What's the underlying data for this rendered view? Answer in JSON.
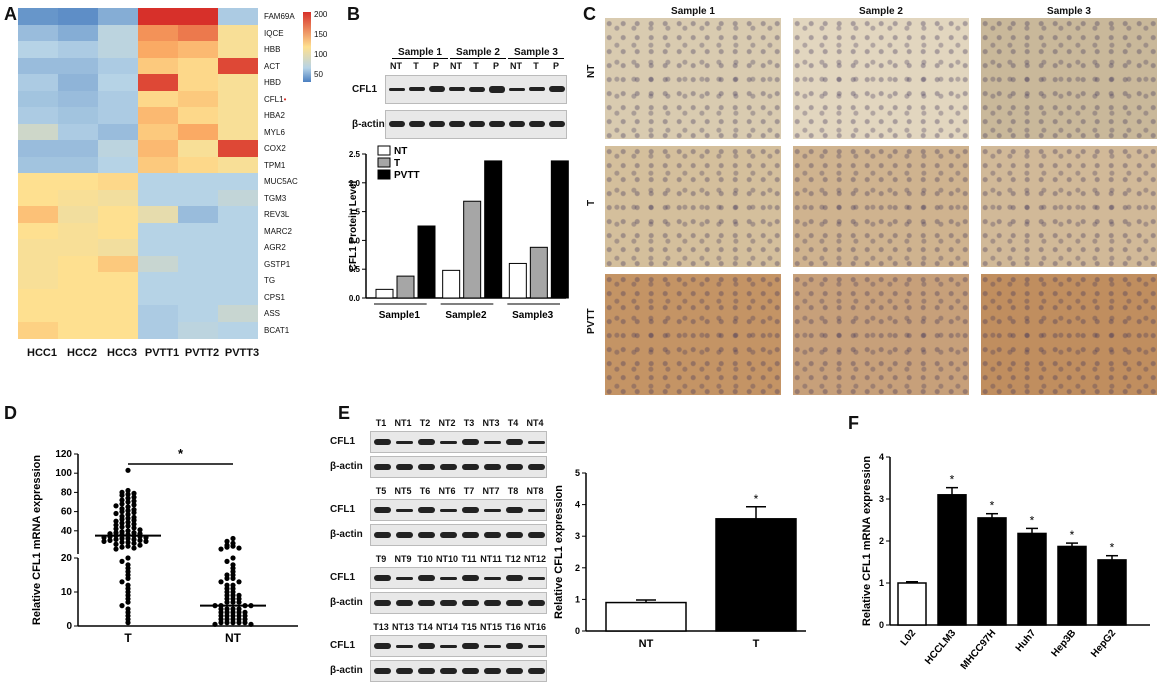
{
  "panels": {
    "A": "A",
    "B": "B",
    "C": "C",
    "D": "D",
    "E": "E",
    "F": "F"
  },
  "heatmap": {
    "genes": [
      "FAM69A",
      "IQCE",
      "HBB",
      "ACT",
      "HBD",
      "CFL1",
      "HBA2",
      "MYL6",
      "COX2",
      "TPM1",
      "MUC5AC",
      "TGM3",
      "REV3L",
      "MARC2",
      "AGR2",
      "GSTP1",
      "TG",
      "CPS1",
      "ASS",
      "BCAT1"
    ],
    "highlight_mark": "•",
    "samples": [
      "HCC1",
      "HCC2",
      "HCC3",
      "PVTT1",
      "PVTT2",
      "PVTT3"
    ],
    "scale_ticks": [
      "200",
      "150",
      "100",
      "50"
    ],
    "colors": {
      "high": "#d7302a",
      "mid": "#fee090",
      "low": "#b6d3e6",
      "lowest": "#4a7fc0"
    },
    "values": [
      [
        15,
        10,
        30,
        200,
        200,
        50
      ],
      [
        40,
        30,
        60,
        160,
        170,
        110
      ],
      [
        55,
        50,
        60,
        150,
        140,
        110
      ],
      [
        40,
        40,
        50,
        130,
        120,
        190
      ],
      [
        50,
        35,
        55,
        190,
        120,
        110
      ],
      [
        45,
        40,
        50,
        120,
        130,
        110
      ],
      [
        50,
        45,
        50,
        140,
        120,
        110
      ],
      [
        75,
        50,
        40,
        130,
        150,
        110
      ],
      [
        40,
        40,
        60,
        140,
        110,
        190
      ],
      [
        45,
        45,
        55,
        130,
        120,
        110
      ],
      [
        115,
        115,
        120,
        55,
        55,
        55
      ],
      [
        115,
        110,
        105,
        55,
        55,
        65
      ],
      [
        135,
        105,
        115,
        95,
        40,
        55
      ],
      [
        115,
        110,
        115,
        55,
        55,
        55
      ],
      [
        110,
        110,
        105,
        55,
        55,
        55
      ],
      [
        110,
        115,
        130,
        70,
        55,
        55
      ],
      [
        110,
        115,
        115,
        55,
        55,
        55
      ],
      [
        115,
        115,
        115,
        55,
        55,
        55
      ],
      [
        115,
        115,
        115,
        50,
        55,
        70
      ],
      [
        125,
        115,
        115,
        50,
        60,
        55
      ]
    ]
  },
  "panelB": {
    "sample_headers": [
      "Sample 1",
      "Sample 2",
      "Sample 3"
    ],
    "lane_labels": [
      "NT",
      "T",
      "P",
      "NT",
      "T",
      "P",
      "NT",
      "T",
      "P"
    ],
    "blot_rows": [
      "CFL1",
      "β-actin"
    ],
    "legend": [
      "NT",
      "T",
      "PVTT"
    ]
  },
  "panelC": {
    "col_headers": [
      "Sample 1",
      "Sample 2",
      "Sample 3"
    ],
    "row_labels": [
      "NT",
      "T",
      "PVTT"
    ]
  },
  "panelE": {
    "blots": [
      {
        "lanes": [
          "T1",
          "NT1",
          "T2",
          "NT2",
          "T3",
          "NT3",
          "T4",
          "NT4"
        ],
        "rows": [
          "CFL1",
          "β-actin"
        ]
      },
      {
        "lanes": [
          "T5",
          "NT5",
          "T6",
          "NT6",
          "T7",
          "NT7",
          "T8",
          "NT8"
        ],
        "rows": [
          "CFL1",
          "β-actin"
        ]
      },
      {
        "lanes": [
          "T9",
          "NT9",
          "T10",
          "NT10",
          "T11",
          "NT11",
          "T12",
          "NT12"
        ],
        "rows": [
          "CFL1",
          "β-actin"
        ]
      },
      {
        "lanes": [
          "T13",
          "NT13",
          "T14",
          "NT14",
          "T15",
          "NT15",
          "T16",
          "NT16"
        ],
        "rows": [
          "CFL1",
          "β-actin"
        ]
      }
    ]
  },
  "chart_data": [
    {
      "type": "bar",
      "panel": "B",
      "categories": [
        "Sample1",
        "Sample2",
        "Sample3"
      ],
      "series": [
        {
          "name": "NT",
          "values": [
            0.15,
            0.48,
            0.6
          ]
        },
        {
          "name": "T",
          "values": [
            0.38,
            1.68,
            0.88
          ]
        },
        {
          "name": "PVTT",
          "values": [
            1.25,
            2.38,
            2.38
          ]
        }
      ],
      "ylabel": "CFL1 Protein Level",
      "ylim": [
        0,
        2.5
      ],
      "yticks": [
        "0.0",
        "0.5",
        "1.0",
        "1.5",
        "2.0",
        "2.5"
      ],
      "colors": [
        "#ffffff",
        "#a6a6a6",
        "#000000"
      ],
      "legend": "top-left"
    },
    {
      "type": "scatter",
      "panel": "D",
      "categories": [
        "T",
        "NT"
      ],
      "ylabel": "Relative CFL1 mRNA expression",
      "yticks": [
        "0",
        "10",
        "20",
        "40",
        "60",
        "80",
        "100",
        "120"
      ],
      "means": [
        35,
        6
      ],
      "significance": "*",
      "points_T": [
        103,
        82,
        80,
        79,
        78,
        77,
        75,
        74,
        72,
        71,
        70,
        68,
        67,
        66,
        65,
        63,
        62,
        61,
        60,
        59,
        58,
        57,
        55,
        54,
        53,
        52,
        51,
        50,
        49,
        48,
        47,
        46,
        45,
        44,
        43,
        42,
        41,
        40,
        39,
        38,
        38,
        37,
        37,
        36,
        36,
        35,
        35,
        34,
        34,
        33,
        33,
        32,
        32,
        31,
        31,
        30,
        30,
        29,
        29,
        28,
        28,
        27,
        26,
        25,
        24,
        23,
        22,
        21,
        20,
        19,
        18,
        17,
        16,
        15,
        14,
        13,
        12,
        11,
        10,
        9,
        8,
        7,
        6,
        5,
        4,
        3,
        2,
        1
      ],
      "points_NT": [
        32,
        29,
        27,
        25,
        24,
        23,
        22,
        21,
        20,
        19,
        18,
        17,
        16,
        15,
        15,
        14,
        14,
        13,
        13,
        12,
        12,
        11,
        11,
        10,
        10,
        9,
        9,
        9,
        8,
        8,
        8,
        7,
        7,
        7,
        6,
        6,
        6,
        6,
        5,
        5,
        5,
        5,
        4,
        4,
        4,
        4,
        4,
        3,
        3,
        3,
        3,
        3,
        2,
        2,
        2,
        2,
        2,
        1,
        1,
        1,
        1,
        1,
        0.5,
        0.5
      ]
    },
    {
      "type": "bar",
      "panel": "E",
      "categories": [
        "NT",
        "T"
      ],
      "values": [
        0.9,
        3.55
      ],
      "errors": [
        0.08,
        0.38
      ],
      "ylabel": "Relative CFL1 expression",
      "ylim": [
        0,
        5
      ],
      "yticks": [
        "0",
        "1",
        "2",
        "3",
        "4",
        "5"
      ],
      "colors": [
        "#ffffff",
        "#000000"
      ],
      "significance": [
        "",
        "*"
      ]
    },
    {
      "type": "bar",
      "panel": "F",
      "categories": [
        "L02",
        "HCCLM3",
        "MHCC97H",
        "Huh7",
        "Hep3B",
        "HepG2"
      ],
      "values": [
        1.0,
        3.1,
        2.55,
        2.18,
        1.87,
        1.55
      ],
      "errors": [
        0.03,
        0.17,
        0.1,
        0.12,
        0.08,
        0.1
      ],
      "ylabel": "Relative CFL1 mRNA expression",
      "ylim": [
        0,
        4
      ],
      "yticks": [
        "0",
        "1",
        "2",
        "3",
        "4"
      ],
      "colors": [
        "#ffffff",
        "#000000",
        "#000000",
        "#000000",
        "#000000",
        "#000000"
      ],
      "significance": [
        "",
        "*",
        "*",
        "*",
        "*",
        "*"
      ]
    }
  ]
}
